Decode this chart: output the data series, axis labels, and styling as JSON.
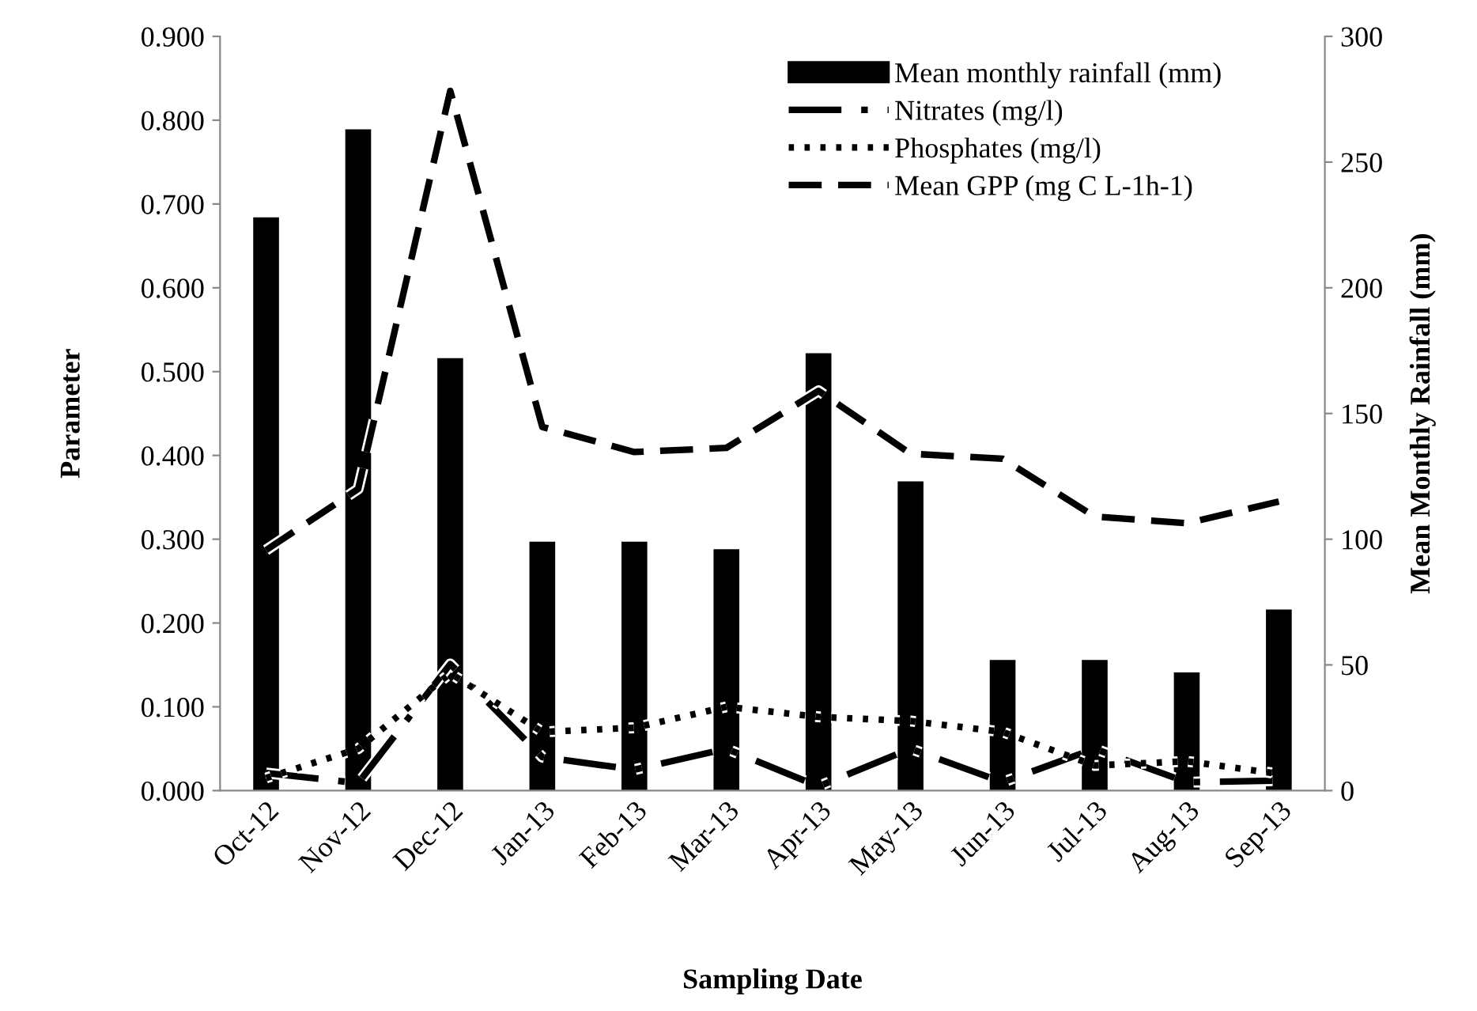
{
  "chart_data": {
    "type": "line",
    "xlabel": "Sampling Date",
    "ylabel": "Parameter",
    "y2label": "Mean Monthly Rainfall (mm)",
    "categories": [
      "Oct-12",
      "Nov-12",
      "Dec-12",
      "Jan-13",
      "Feb-13",
      "Mar-13",
      "Apr-13",
      "May-13",
      "Jun-13",
      "Jul-13",
      "Aug-13",
      "Sep-13"
    ],
    "series": [
      {
        "name": "Mean monthly rainfall (mm)",
        "type": "bar",
        "axis": "y2",
        "color": "#000000",
        "values": [
          228,
          263,
          172,
          99,
          99,
          96,
          174,
          123,
          52,
          52,
          47,
          72
        ]
      },
      {
        "name": "Nitrates (mg/l)",
        "line_style": "dashdot",
        "color": "#000000",
        "values": [
          0.021,
          0.009,
          0.151,
          0.04,
          0.025,
          0.05,
          0.005,
          0.05,
          0.01,
          0.05,
          0.01,
          0.012
        ]
      },
      {
        "name": "Phosphates (mg/l)",
        "line_style": "dotted",
        "color": "#000000",
        "values": [
          0.015,
          0.05,
          0.14,
          0.07,
          0.075,
          0.1,
          0.088,
          0.083,
          0.07,
          0.03,
          0.035,
          0.02
        ]
      },
      {
        "name": "Mean GPP (mg C L-1h-1)",
        "line_style": "dashed",
        "color": "#000000",
        "values": [
          0.287,
          0.36,
          0.835,
          0.434,
          0.404,
          0.409,
          0.477,
          0.402,
          0.396,
          0.327,
          0.319,
          0.345
        ]
      }
    ],
    "ylim": [
      0,
      0.9
    ],
    "yticks": [
      {
        "value": 0,
        "label": "0.000"
      },
      {
        "value": 0.1,
        "label": "0.100"
      },
      {
        "value": 0.2,
        "label": "0.200"
      },
      {
        "value": 0.3,
        "label": "0.300"
      },
      {
        "value": 0.4,
        "label": "0.400"
      },
      {
        "value": 0.5,
        "label": "0.500"
      },
      {
        "value": 0.6,
        "label": "0.600"
      },
      {
        "value": 0.7,
        "label": "0.700"
      },
      {
        "value": 0.8,
        "label": "0.800"
      },
      {
        "value": 0.9,
        "label": "0.900"
      }
    ],
    "y2lim": [
      0,
      300
    ],
    "y2ticks": [
      0,
      50,
      100,
      150,
      200,
      250,
      300
    ],
    "grid": false,
    "legend": "top right",
    "marker": "none"
  }
}
